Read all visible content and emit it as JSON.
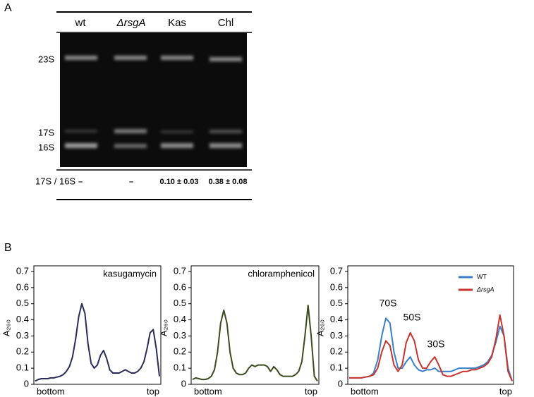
{
  "panel_labels": [
    "A",
    "B"
  ],
  "panel_a": {
    "columns": [
      "wt",
      "ΔrsgA",
      "Kas",
      "Chl"
    ],
    "bands": [
      "23S",
      "17S",
      "16S"
    ],
    "ratio_label": "17S / 16S",
    "ratios": [
      "–",
      "–",
      "0.10 ± 0.03",
      "0.38 ± 0.08"
    ]
  },
  "chart_data": [
    {
      "type": "line",
      "title": "kasugamycin",
      "ylabel": "A₂₆₀",
      "x_end_labels": [
        "bottom",
        "top"
      ],
      "ylim": [
        0,
        0.7
      ],
      "yticks": [
        0,
        0.1,
        0.2,
        0.3,
        0.4,
        0.5,
        0.6,
        0.7
      ],
      "color": "#2b2a5a",
      "values": [
        0.02,
        0.03,
        0.035,
        0.035,
        0.035,
        0.04,
        0.04,
        0.045,
        0.05,
        0.06,
        0.08,
        0.11,
        0.17,
        0.28,
        0.42,
        0.5,
        0.44,
        0.25,
        0.13,
        0.1,
        0.12,
        0.18,
        0.21,
        0.16,
        0.09,
        0.07,
        0.07,
        0.07,
        0.08,
        0.09,
        0.08,
        0.07,
        0.07,
        0.08,
        0.1,
        0.14,
        0.22,
        0.32,
        0.34,
        0.22,
        0.05
      ]
    },
    {
      "type": "line",
      "title": "chloramphenicol",
      "ylabel": "A₂₆₀",
      "x_end_labels": [
        "bottom",
        "top"
      ],
      "ylim": [
        0,
        0.7
      ],
      "yticks": [
        0,
        0.1,
        0.2,
        0.3,
        0.4,
        0.5,
        0.6,
        0.7
      ],
      "color": "#3d4a1f",
      "values": [
        0.03,
        0.04,
        0.035,
        0.03,
        0.03,
        0.035,
        0.05,
        0.09,
        0.2,
        0.38,
        0.46,
        0.38,
        0.2,
        0.1,
        0.07,
        0.06,
        0.06,
        0.07,
        0.1,
        0.12,
        0.11,
        0.12,
        0.12,
        0.12,
        0.11,
        0.08,
        0.11,
        0.09,
        0.06,
        0.05,
        0.05,
        0.05,
        0.05,
        0.06,
        0.08,
        0.14,
        0.3,
        0.49,
        0.3,
        0.05,
        0.02
      ]
    },
    {
      "type": "line",
      "ylabel": "A₂₆₀",
      "x_end_labels": [
        "bottom",
        "top"
      ],
      "ylim": [
        0,
        0.7
      ],
      "yticks": [
        0,
        0.1,
        0.2,
        0.3,
        0.4,
        0.5,
        0.6,
        0.7
      ],
      "annotations": [
        "70S",
        "50S",
        "30S"
      ],
      "series": [
        {
          "name": "WT",
          "color": "#3a7fc8",
          "values": [
            0.04,
            0.04,
            0.04,
            0.04,
            0.045,
            0.05,
            0.07,
            0.15,
            0.3,
            0.41,
            0.38,
            0.2,
            0.1,
            0.1,
            0.14,
            0.17,
            0.12,
            0.09,
            0.08,
            0.09,
            0.09,
            0.1,
            0.08,
            0.08,
            0.08,
            0.08,
            0.09,
            0.1,
            0.1,
            0.1,
            0.1,
            0.1,
            0.11,
            0.12,
            0.14,
            0.18,
            0.26,
            0.36,
            0.3,
            0.1,
            0.02
          ]
        },
        {
          "name": "ΔrsgA",
          "color": "#c8332e",
          "values": [
            0.04,
            0.04,
            0.04,
            0.04,
            0.045,
            0.05,
            0.06,
            0.1,
            0.2,
            0.27,
            0.24,
            0.12,
            0.08,
            0.12,
            0.26,
            0.32,
            0.27,
            0.15,
            0.1,
            0.1,
            0.14,
            0.17,
            0.12,
            0.06,
            0.05,
            0.05,
            0.06,
            0.07,
            0.08,
            0.08,
            0.09,
            0.09,
            0.1,
            0.11,
            0.13,
            0.17,
            0.28,
            0.43,
            0.3,
            0.08,
            0.02
          ]
        }
      ]
    }
  ]
}
